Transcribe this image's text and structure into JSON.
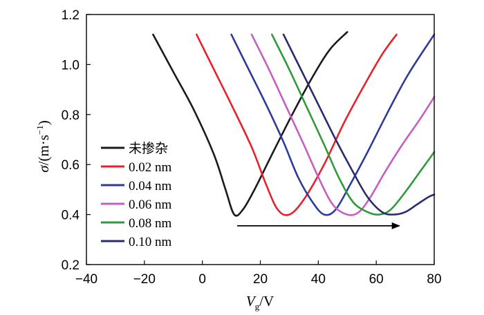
{
  "chart_data": {
    "type": "line",
    "xlabel": "V_g/V",
    "ylabel": "σ/(m·s⁻¹)",
    "xlabel_parts": {
      "symbol": "V",
      "subscript": "g",
      "unit": "/V"
    },
    "ylabel_parts": {
      "symbol": "σ",
      "unit_open": "/(m·s",
      "exp": "−1",
      "unit_close": ")"
    },
    "xlim": [
      -40,
      80
    ],
    "ylim": [
      0.2,
      1.2
    ],
    "xticks": [
      -40,
      -20,
      0,
      20,
      40,
      60,
      80
    ],
    "xtick_labels": [
      "−40",
      "−20",
      "0",
      "20",
      "40",
      "60",
      "80"
    ],
    "yticks": [
      0.2,
      0.4,
      0.6,
      0.8,
      1.0,
      1.2
    ],
    "ytick_labels": [
      "0.2",
      "0.4",
      "0.6",
      "0.8",
      "1.0",
      "1.2"
    ],
    "grid": false,
    "legend_position": "left",
    "series": [
      {
        "name": "未掺杂",
        "color": "#1a1a1a",
        "x": [
          -17,
          -10,
          -3,
          4,
          8,
          11,
          14,
          18,
          24,
          31,
          38,
          44,
          50
        ],
        "y": [
          1.12,
          0.97,
          0.82,
          0.64,
          0.5,
          0.4,
          0.42,
          0.5,
          0.64,
          0.8,
          0.95,
          1.06,
          1.13
        ]
      },
      {
        "name": "0.02 nm",
        "color": "#e8202a",
        "x": [
          -2,
          4,
          10,
          17,
          22,
          26,
          30,
          35,
          42,
          49,
          56,
          62,
          67
        ],
        "y": [
          1.12,
          0.98,
          0.84,
          0.67,
          0.52,
          0.42,
          0.4,
          0.46,
          0.6,
          0.77,
          0.92,
          1.04,
          1.12
        ]
      },
      {
        "name": "0.04 nm",
        "color": "#2e3a9a",
        "x": [
          10,
          16,
          22,
          28,
          33,
          38,
          42,
          46,
          51,
          57,
          64,
          71,
          80
        ],
        "y": [
          1.12,
          0.98,
          0.84,
          0.69,
          0.55,
          0.45,
          0.4,
          0.42,
          0.52,
          0.65,
          0.81,
          0.96,
          1.12
        ]
      },
      {
        "name": "0.06 nm",
        "color": "#c45ec0",
        "x": [
          17,
          23,
          29,
          35,
          40,
          45,
          50,
          54,
          58,
          63,
          69,
          75,
          80
        ],
        "y": [
          1.12,
          0.98,
          0.83,
          0.68,
          0.55,
          0.44,
          0.4,
          0.41,
          0.47,
          0.57,
          0.68,
          0.78,
          0.87
        ]
      },
      {
        "name": "0.08 nm",
        "color": "#2e9a3a",
        "x": [
          24,
          30,
          36,
          42,
          47,
          52,
          57,
          61,
          65,
          70,
          75,
          80
        ],
        "y": [
          1.12,
          0.98,
          0.83,
          0.68,
          0.55,
          0.45,
          0.41,
          0.4,
          0.42,
          0.49,
          0.57,
          0.65
        ]
      },
      {
        "name": "0.10 nm",
        "color": "#2a2a6e",
        "x": [
          28,
          34,
          40,
          46,
          52,
          57,
          62,
          66,
          70,
          74,
          78,
          80
        ],
        "y": [
          1.12,
          0.98,
          0.84,
          0.7,
          0.57,
          0.47,
          0.41,
          0.4,
          0.41,
          0.44,
          0.47,
          0.48
        ]
      }
    ],
    "annotations": [
      {
        "type": "arrow",
        "x_start": 12,
        "x_end": 68,
        "y": 0.355,
        "color": "#000000"
      }
    ]
  }
}
